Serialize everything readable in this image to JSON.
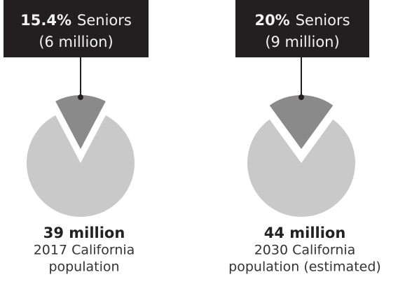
{
  "chart_data": [
    {
      "type": "pie",
      "title": "39 million",
      "subtitle": [
        "2017 California",
        "population"
      ],
      "categories": [
        "Seniors",
        null
      ],
      "values": [
        15.4,
        84.6
      ],
      "value_labels": [
        "15.4%",
        null
      ],
      "annotation": "(6 million)",
      "colors": [
        "#8a8a8a",
        "#c9c9c9"
      ]
    },
    {
      "type": "pie",
      "title": "44 million",
      "subtitle": [
        "2030 California",
        "population (estimated)"
      ],
      "categories": [
        "Seniors",
        null
      ],
      "values": [
        20,
        80
      ],
      "value_labels": [
        "20%",
        null
      ],
      "annotation": "(9 million)",
      "colors": [
        "#8a8a8a",
        "#c9c9c9"
      ]
    }
  ]
}
